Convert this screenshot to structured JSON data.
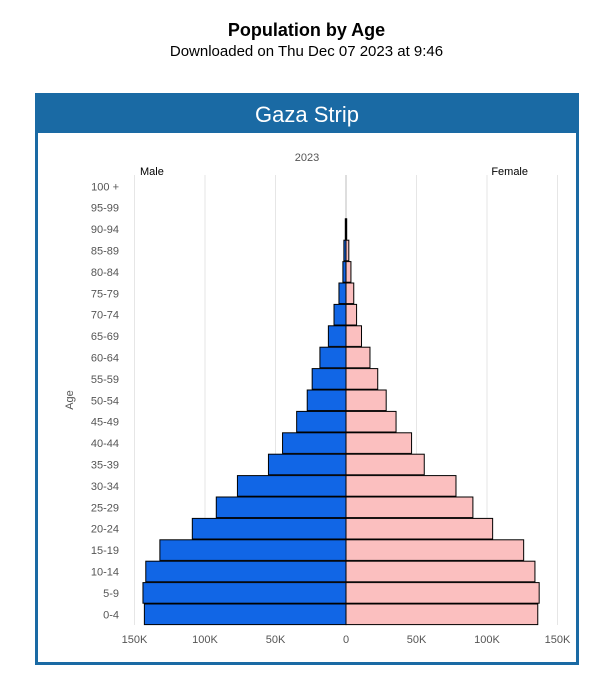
{
  "header": {
    "title": "Population by Age",
    "subtitle": "Downloaded on Thu Dec 07 2023 at 9:46"
  },
  "panel": {
    "title": "Gaza Strip",
    "header_color": "#1a6aa4"
  },
  "chart_data": {
    "type": "bar",
    "orientation": "horizontal",
    "subtype": "population-pyramid",
    "title": "2023",
    "ylabel": "Age",
    "xlabel": "",
    "categories": [
      "100 +",
      "95-99",
      "90-94",
      "85-89",
      "80-84",
      "75-79",
      "70-74",
      "65-69",
      "60-64",
      "55-59",
      "50-54",
      "45-49",
      "40-44",
      "35-39",
      "30-34",
      "25-29",
      "20-24",
      "15-19",
      "10-14",
      "5-9",
      "0-4"
    ],
    "series": [
      {
        "name": "Male",
        "color": "#1166e6",
        "values": [
          0,
          0,
          500,
          1500,
          2200,
          5000,
          8500,
          12500,
          18500,
          24000,
          27500,
          35000,
          45000,
          55000,
          77000,
          92000,
          109000,
          132000,
          142000,
          144000,
          143000
        ]
      },
      {
        "name": "Female",
        "color": "#fbbfbf",
        "values": [
          0,
          0,
          500,
          2000,
          3500,
          5500,
          7500,
          11000,
          17000,
          22500,
          28500,
          35500,
          46500,
          55500,
          78000,
          90000,
          104000,
          126000,
          134000,
          137000,
          136000
        ]
      }
    ],
    "xlim": [
      -150000,
      150000
    ],
    "x_ticks": [
      {
        "value": -150000,
        "label": "150K"
      },
      {
        "value": -100000,
        "label": "100K"
      },
      {
        "value": -50000,
        "label": "50K"
      },
      {
        "value": 0,
        "label": "0"
      },
      {
        "value": 50000,
        "label": "50K"
      },
      {
        "value": 100000,
        "label": "100K"
      },
      {
        "value": 150000,
        "label": "150K"
      }
    ],
    "grid": true,
    "legend": {
      "left": "Male",
      "right": "Female"
    }
  }
}
